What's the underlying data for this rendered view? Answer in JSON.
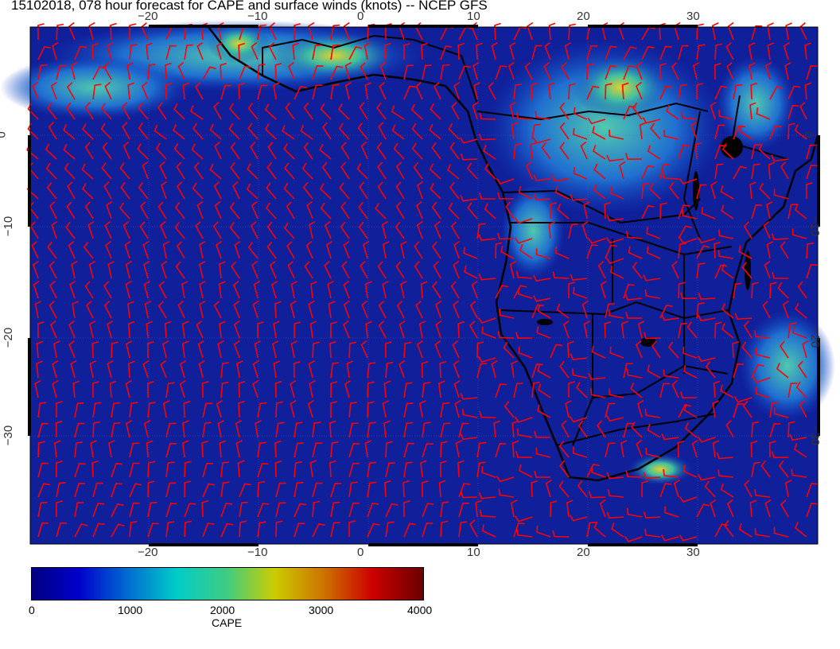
{
  "title": "15102018, 078 hour forecast for CAPE and surface winds (knots) -- NCEP GFS",
  "map": {
    "lon_ticks": [
      "−20",
      "−10",
      "0",
      "10",
      "20",
      "30"
    ],
    "lat_ticks": [
      "0",
      "−10",
      "−20",
      "−30"
    ],
    "lon_range": [
      -31,
      41
    ],
    "lat_range": [
      12,
      -41
    ],
    "wind_barb_color": "#ff0000",
    "coastline_color": "#000000"
  },
  "colorbar": {
    "label": "CAPE",
    "ticks": [
      "0",
      "1000",
      "2000",
      "3000",
      "4000"
    ],
    "range": [
      0,
      4000
    ],
    "colormap": [
      "#00007f",
      "#0000cc",
      "#00ccc8",
      "#cccc00",
      "#cc0000",
      "#6a0000"
    ]
  }
}
